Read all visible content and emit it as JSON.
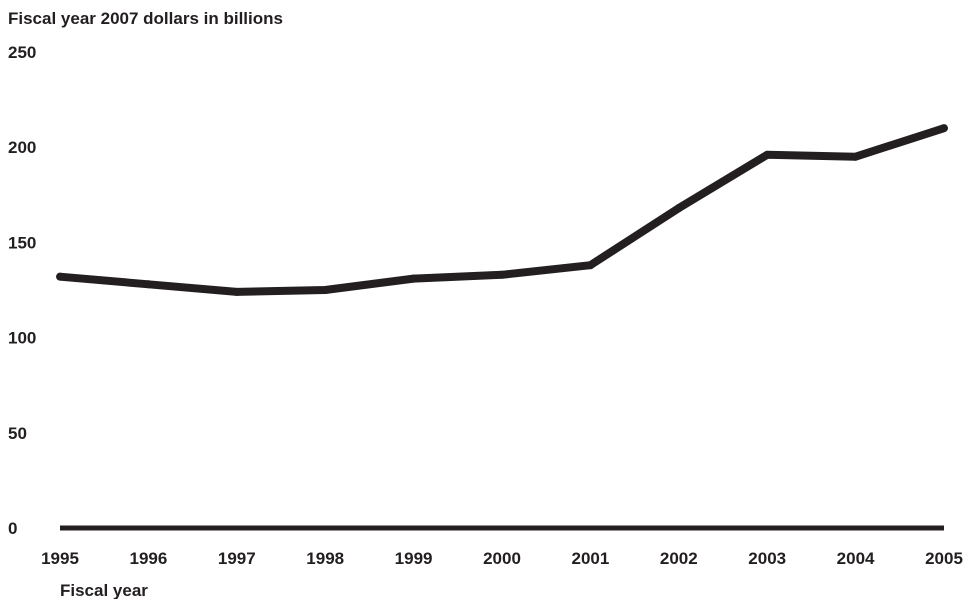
{
  "chart_data": {
    "type": "line",
    "title": "",
    "ylabel": "Fiscal year 2007 dollars in billions",
    "xlabel": "Fiscal year",
    "x": [
      "1995",
      "1996",
      "1997",
      "1998",
      "1999",
      "2000",
      "2001",
      "2002",
      "2003",
      "2004",
      "2005"
    ],
    "series": [
      {
        "values": [
          132,
          128,
          124,
          125,
          131,
          133,
          138,
          168,
          196,
          195,
          210
        ]
      }
    ],
    "ylim": [
      0,
      250
    ],
    "yticks": [
      "0",
      "50",
      "100",
      "150",
      "200",
      "250"
    ],
    "grid": false,
    "legend": "none",
    "colors": {
      "line": "#231f20",
      "axis": "#231f20",
      "text": "#231f20"
    }
  }
}
